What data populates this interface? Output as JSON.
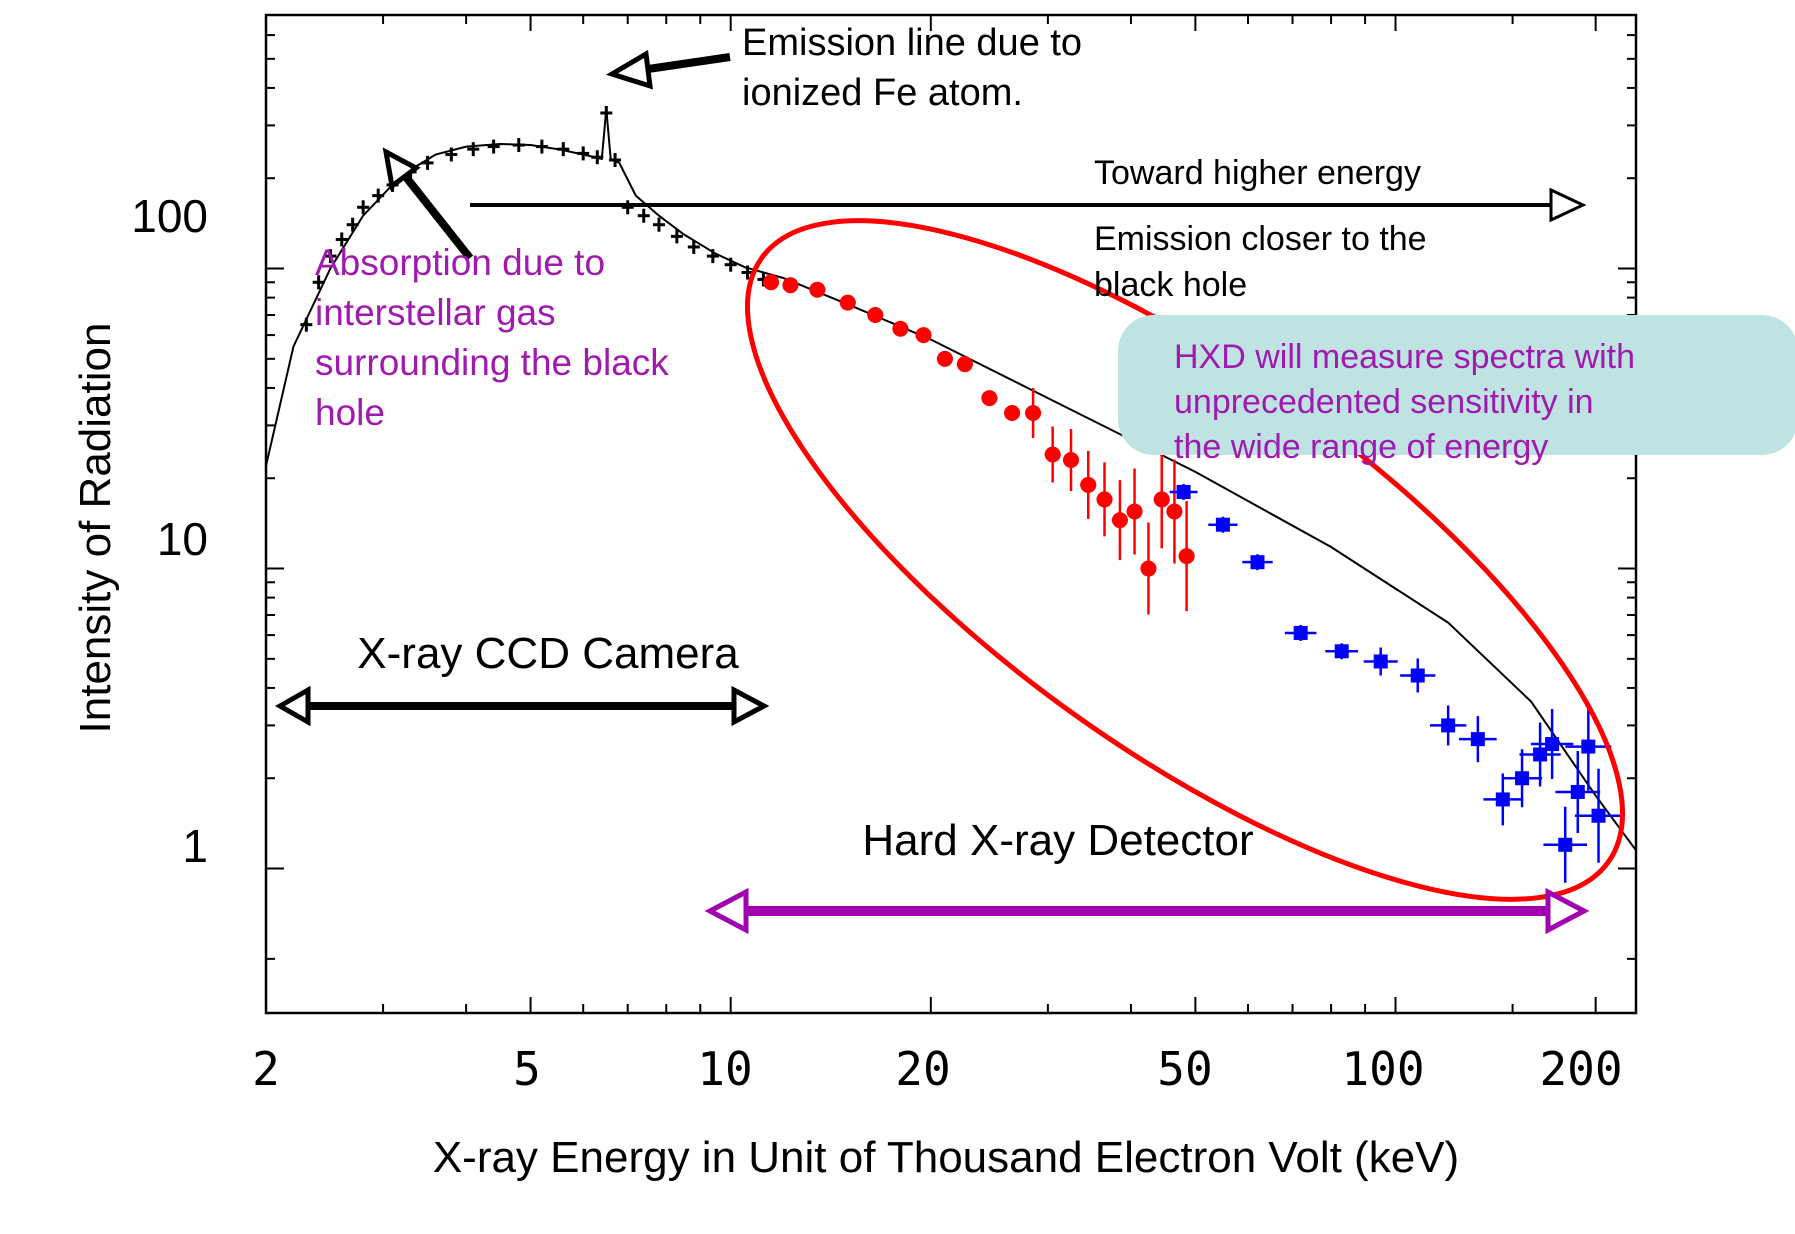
{
  "chart_data": {
    "type": "scatter",
    "title": "",
    "xlabel": "X-ray Energy in Unit of Thousand Electron Volt (keV)",
    "ylabel": "Intensity of Radiation",
    "xscale": "log",
    "yscale": "log",
    "xlim": [
      2,
      230
    ],
    "ylim": [
      0.33,
      700
    ],
    "x_ticks": [
      2,
      5,
      10,
      20,
      50,
      100,
      200
    ],
    "y_ticks": [
      1,
      10,
      100
    ],
    "grid": false,
    "series": [
      {
        "role": "model",
        "color": "#000000",
        "x": [
          2.0,
          2.2,
          2.5,
          2.8,
          3.2,
          3.6,
          4.0,
          4.5,
          5.0,
          5.5,
          6.0,
          6.4,
          6.5,
          6.6,
          6.8,
          7.2,
          7.8,
          8.5,
          9.5,
          10.5,
          12,
          15,
          20,
          30,
          50,
          80,
          120,
          160,
          200,
          230
        ],
        "y": [
          22,
          55,
          100,
          150,
          205,
          240,
          255,
          260,
          258,
          250,
          240,
          232,
          340,
          232,
          225,
          175,
          150,
          130,
          112,
          101,
          93,
          76,
          58,
          37,
          21,
          11.8,
          6.6,
          3.6,
          1.75,
          1.15
        ]
      },
      {
        "role": "CCD data",
        "color": "#000000",
        "x": [
          2.3,
          2.4,
          2.5,
          2.6,
          2.7,
          2.8,
          2.95,
          3.1,
          3.3,
          3.5,
          3.8,
          4.1,
          4.4,
          4.8,
          5.2,
          5.6,
          6.0,
          6.3,
          6.5,
          6.7,
          7.0,
          7.4,
          7.8,
          8.3,
          8.8,
          9.4,
          10.0,
          10.6,
          11.2
        ],
        "y": [
          65,
          90,
          110,
          125,
          140,
          160,
          175,
          190,
          210,
          225,
          240,
          250,
          255,
          258,
          255,
          250,
          242,
          235,
          330,
          230,
          160,
          150,
          140,
          128,
          118,
          110,
          103,
          97,
          92
        ]
      },
      {
        "role": "HXD PIN data",
        "color": "#ff0000",
        "x": [
          11.5,
          12.3,
          13.5,
          15,
          16.5,
          18,
          19.5,
          21,
          22.5,
          24.5,
          26.5,
          28.5,
          30.5,
          32.5,
          34.5,
          36.5,
          38.5,
          40.5,
          42.5,
          44.5,
          46.5,
          48.5
        ],
        "y": [
          90,
          88,
          85,
          77,
          70,
          63,
          60,
          50,
          48,
          37,
          33,
          33,
          24,
          23,
          19,
          17,
          14.5,
          15.5,
          10,
          17,
          15.5,
          11
        ]
      },
      {
        "role": "HXD GSO data",
        "color": "#0000ff",
        "x": [
          48,
          55,
          62,
          72,
          83,
          95,
          108,
          120,
          133,
          145,
          155,
          165,
          172,
          180,
          188,
          195,
          202
        ],
        "y": [
          18,
          14,
          10.5,
          6.1,
          5.3,
          4.9,
          4.4,
          3.0,
          2.7,
          1.7,
          2.0,
          2.4,
          2.6,
          1.2,
          1.8,
          2.55,
          1.5
        ]
      }
    ],
    "annotations": {
      "fe_line": [
        "Emission line due to",
        "ionized Fe atom."
      ],
      "toward_higher": "Toward higher energy",
      "emission_closer": [
        "Emission closer to the",
        "black hole"
      ],
      "absorption": [
        "Absorption due to",
        "interstellar gas",
        "surrounding the black",
        "hole"
      ],
      "ccd_label": "X-ray CCD Camera",
      "hxd_label": "Hard X-ray Detector",
      "callout": [
        "HXD will measure spectra with",
        "unprecedented sensitivity in",
        "the wide range of energy"
      ]
    },
    "colors": {
      "pin_points": "#ff0000",
      "gso_points": "#0000ff",
      "annotation_purple": "#a01ab0",
      "hxd_arrow": "#a000b0",
      "ellipse": "#ff0000",
      "callout_fill": "#bfe3e3"
    }
  }
}
